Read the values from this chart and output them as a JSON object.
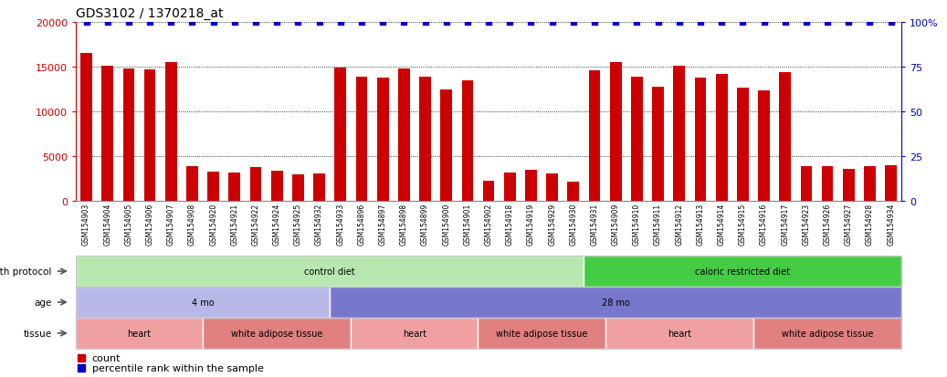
{
  "title": "GDS3102 / 1370218_at",
  "samples": [
    "GSM154903",
    "GSM154904",
    "GSM154905",
    "GSM154906",
    "GSM154907",
    "GSM154908",
    "GSM154920",
    "GSM154921",
    "GSM154922",
    "GSM154924",
    "GSM154925",
    "GSM154932",
    "GSM154933",
    "GSM154896",
    "GSM154897",
    "GSM154898",
    "GSM154899",
    "GSM154900",
    "GSM154901",
    "GSM154902",
    "GSM154918",
    "GSM154919",
    "GSM154929",
    "GSM154930",
    "GSM154931",
    "GSM154909",
    "GSM154910",
    "GSM154911",
    "GSM154912",
    "GSM154913",
    "GSM154914",
    "GSM154915",
    "GSM154916",
    "GSM154917",
    "GSM154923",
    "GSM154926",
    "GSM154927",
    "GSM154928",
    "GSM154934"
  ],
  "counts": [
    16500,
    15100,
    14800,
    14700,
    15500,
    3900,
    3300,
    3200,
    3800,
    3400,
    3000,
    3100,
    14900,
    13900,
    13800,
    14800,
    13900,
    12400,
    13500,
    2300,
    3200,
    3500,
    3100,
    2100,
    14600,
    15500,
    13900,
    12700,
    15100,
    13800,
    14200,
    12600,
    12300,
    14400,
    3900,
    3900,
    3600,
    3900,
    4000
  ],
  "bar_color": "#cc0000",
  "percentile_color": "#0000cc",
  "ylim_left": [
    0,
    20000
  ],
  "ylim_right": [
    0,
    100
  ],
  "yticks_left": [
    0,
    5000,
    10000,
    15000,
    20000
  ],
  "ytick_labels_left": [
    "0",
    "5000",
    "10000",
    "15000",
    "20000"
  ],
  "yticks_right": [
    0,
    25,
    50,
    75,
    100
  ],
  "ytick_labels_right": [
    "0",
    "25",
    "50",
    "75",
    "100%"
  ],
  "grid_values": [
    5000,
    10000,
    15000,
    20000
  ],
  "growth_protocol_groups": [
    {
      "label": "control diet",
      "start": 0,
      "end": 24,
      "color": "#b8e8b0"
    },
    {
      "label": "caloric restricted diet",
      "start": 24,
      "end": 39,
      "color": "#44cc44"
    }
  ],
  "age_groups": [
    {
      "label": "4 mo",
      "start": 0,
      "end": 12,
      "color": "#b8b8e8"
    },
    {
      "label": "28 mo",
      "start": 12,
      "end": 39,
      "color": "#7777cc"
    }
  ],
  "tissue_groups": [
    {
      "label": "heart",
      "start": 0,
      "end": 6,
      "color": "#f0a0a0"
    },
    {
      "label": "white adipose tissue",
      "start": 6,
      "end": 13,
      "color": "#e08080"
    },
    {
      "label": "heart",
      "start": 13,
      "end": 19,
      "color": "#f0a0a0"
    },
    {
      "label": "white adipose tissue",
      "start": 19,
      "end": 25,
      "color": "#e08080"
    },
    {
      "label": "heart",
      "start": 25,
      "end": 32,
      "color": "#f0a0a0"
    },
    {
      "label": "white adipose tissue",
      "start": 32,
      "end": 39,
      "color": "#e08080"
    }
  ],
  "legend_items": [
    {
      "label": "count",
      "color": "#cc0000"
    },
    {
      "label": "percentile rank within the sample",
      "color": "#0000cc"
    }
  ],
  "bar_width": 0.55,
  "title_fontsize": 10,
  "tick_fontsize": 5.5,
  "ann_row_labels_topdown": [
    "growth protocol",
    "age",
    "tissue"
  ],
  "xtick_bg_color": "#cccccc",
  "spine_color": "#888888"
}
